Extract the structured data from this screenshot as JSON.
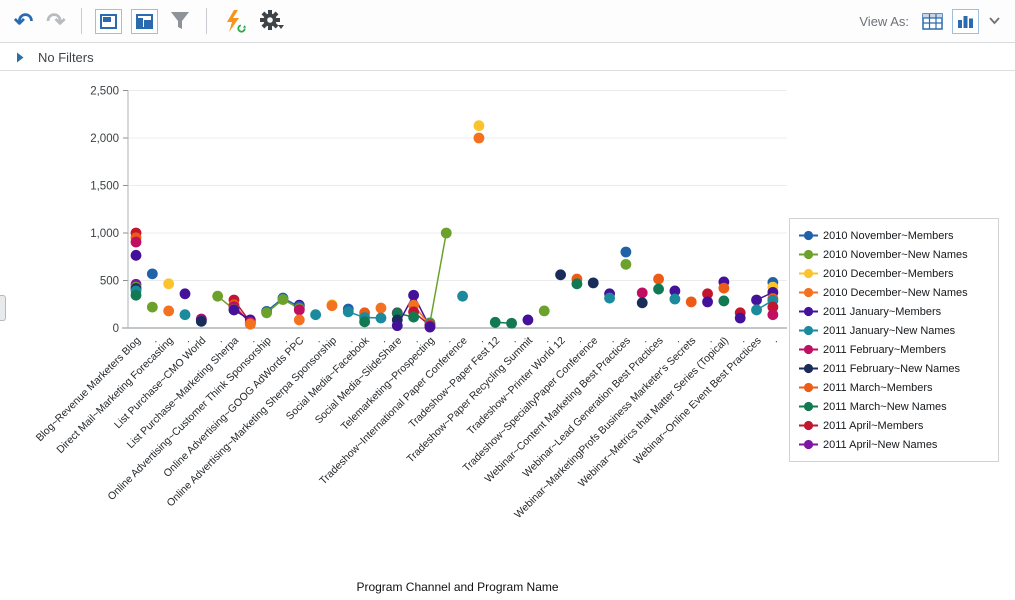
{
  "toolbar": {
    "view_as_label": "View As:"
  },
  "filter_bar": {
    "label": "No Filters"
  },
  "chart_data": {
    "type": "line",
    "title": "",
    "xlabel": "Program Channel and Program Name",
    "ylabel": "",
    "ylim": [
      0,
      2500
    ],
    "grid": true,
    "legend_position": "right",
    "yticks": [
      {
        "v": 0,
        "label": "0"
      },
      {
        "v": 500,
        "label": "500"
      },
      {
        "v": 1000,
        "label": "1,000"
      },
      {
        "v": 1500,
        "label": "1,500"
      },
      {
        "v": 2000,
        "label": "2,000"
      },
      {
        "v": 2500,
        "label": "2,500"
      }
    ],
    "n_columns": 40,
    "labeled_every": 2,
    "unlabeled_tick_text": ".",
    "x_tick_labels": [
      "Blog~Revenue Marketers Blog",
      "Direct Mail~Marketing Forecasting",
      "List Purchase~CMO World",
      "List Purchase~Marketing Sherpa",
      "Online Advertising~Customer Think Sponsorship",
      "Online Advertising~GOOG AdWords PPC",
      "Online Advertising~Marketing Sherpa Sponsorship",
      "Social Media~Facebook",
      "Social Media~SlideShare",
      "Telemarketing~Prospecting",
      "Tradeshow~International Paper Conference",
      "Tradeshow~Paper Fest 12",
      "Tradeshow~Paper Recycling Summit",
      "Tradeshow~Printer World 12",
      "Tradeshow~SpecialtyPaper Conference",
      "Webinar~Content Marketing Best Practices",
      "Webinar~Lead Generation Best Practices",
      "Webinar~MarketingProfs Business Marketer's Secrets",
      "Webinar~Metrics that Matter Series (Topical)",
      "Webinar~Online Event Best Practices"
    ],
    "series": [
      {
        "name": "2010 November~Members",
        "color": "#2062a8"
      },
      {
        "name": "2010 November~New Names",
        "color": "#6ca12c"
      },
      {
        "name": "2010 December~Members",
        "color": "#fdc32e"
      },
      {
        "name": "2010 December~New Names",
        "color": "#f4711f"
      },
      {
        "name": "2011 January~Members",
        "color": "#44129a"
      },
      {
        "name": "2011 January~New Names",
        "color": "#1a8a9c"
      },
      {
        "name": "2011 February~Members",
        "color": "#c00f63"
      },
      {
        "name": "2011 February~New Names",
        "color": "#1a2d5a"
      },
      {
        "name": "2011 March~Members",
        "color": "#ed5c17"
      },
      {
        "name": "2011 March~New Names",
        "color": "#127a52"
      },
      {
        "name": "2011 April~Members",
        "color": "#c3152f"
      },
      {
        "name": "2011 April~New Names",
        "color": "#7d17a3"
      }
    ],
    "points": [
      {
        "c": 0,
        "s": 10,
        "v": 1000
      },
      {
        "c": 0,
        "s": 8,
        "v": 950
      },
      {
        "c": 0,
        "s": 6,
        "v": 905
      },
      {
        "c": 0,
        "s": 4,
        "v": 765
      },
      {
        "c": 0,
        "s": 11,
        "v": 460
      },
      {
        "c": 0,
        "s": 1,
        "v": 430
      },
      {
        "c": 0,
        "s": 7,
        "v": 415
      },
      {
        "c": 0,
        "s": 5,
        "v": 390
      },
      {
        "c": 0,
        "s": 9,
        "v": 345
      },
      {
        "c": 1,
        "s": 0,
        "v": 570
      },
      {
        "c": 1,
        "s": 1,
        "v": 220
      },
      {
        "c": 2,
        "s": 2,
        "v": 465
      },
      {
        "c": 2,
        "s": 3,
        "v": 180
      },
      {
        "c": 3,
        "s": 4,
        "v": 360
      },
      {
        "c": 3,
        "s": 5,
        "v": 140
      },
      {
        "c": 4,
        "s": 6,
        "v": 95
      },
      {
        "c": 4,
        "s": 11,
        "v": 85
      },
      {
        "c": 4,
        "s": 7,
        "v": 70
      },
      {
        "c": 5,
        "s": 1,
        "v": 335
      },
      {
        "c": 6,
        "s": 10,
        "v": 295
      },
      {
        "c": 6,
        "s": 8,
        "v": 245
      },
      {
        "c": 6,
        "s": 6,
        "v": 225
      },
      {
        "c": 6,
        "s": 1,
        "v": 195
      },
      {
        "c": 6,
        "s": 4,
        "v": 190
      },
      {
        "c": 7,
        "s": 4,
        "v": 85
      },
      {
        "c": 7,
        "s": 10,
        "v": 60
      },
      {
        "c": 7,
        "s": 6,
        "v": 55
      },
      {
        "c": 7,
        "s": 8,
        "v": 45
      },
      {
        "c": 7,
        "s": 3,
        "v": 40
      },
      {
        "c": 8,
        "s": 0,
        "v": 175
      },
      {
        "c": 8,
        "s": 1,
        "v": 160
      },
      {
        "c": 9,
        "s": 0,
        "v": 315
      },
      {
        "c": 9,
        "s": 1,
        "v": 300
      },
      {
        "c": 10,
        "s": 4,
        "v": 240
      },
      {
        "c": 10,
        "s": 0,
        "v": 225
      },
      {
        "c": 10,
        "s": 1,
        "v": 205
      },
      {
        "c": 10,
        "s": 6,
        "v": 190
      },
      {
        "c": 10,
        "s": 3,
        "v": 85
      },
      {
        "c": 11,
        "s": 5,
        "v": 140
      },
      {
        "c": 12,
        "s": 2,
        "v": 245
      },
      {
        "c": 12,
        "s": 3,
        "v": 235
      },
      {
        "c": 13,
        "s": 0,
        "v": 200
      },
      {
        "c": 13,
        "s": 5,
        "v": 170
      },
      {
        "c": 14,
        "s": 8,
        "v": 160
      },
      {
        "c": 14,
        "s": 5,
        "v": 110
      },
      {
        "c": 14,
        "s": 9,
        "v": 65
      },
      {
        "c": 15,
        "s": 3,
        "v": 210
      },
      {
        "c": 15,
        "s": 5,
        "v": 105
      },
      {
        "c": 16,
        "s": 6,
        "v": 160
      },
      {
        "c": 16,
        "s": 9,
        "v": 155
      },
      {
        "c": 16,
        "s": 7,
        "v": 85
      },
      {
        "c": 16,
        "s": 4,
        "v": 25
      },
      {
        "c": 17,
        "s": 4,
        "v": 345
      },
      {
        "c": 17,
        "s": 3,
        "v": 240
      },
      {
        "c": 17,
        "s": 10,
        "v": 170
      },
      {
        "c": 17,
        "s": 9,
        "v": 115
      },
      {
        "c": 18,
        "s": 1,
        "v": 55
      },
      {
        "c": 18,
        "s": 5,
        "v": 45
      },
      {
        "c": 18,
        "s": 3,
        "v": 30
      },
      {
        "c": 18,
        "s": 10,
        "v": 25
      },
      {
        "c": 18,
        "s": 6,
        "v": 20
      },
      {
        "c": 18,
        "s": 4,
        "v": 10
      },
      {
        "c": 19,
        "s": 1,
        "v": 1000
      },
      {
        "c": 20,
        "s": 5,
        "v": 335
      },
      {
        "c": 21,
        "s": 2,
        "v": 2130
      },
      {
        "c": 21,
        "s": 3,
        "v": 2000
      },
      {
        "c": 22,
        "s": 9,
        "v": 60
      },
      {
        "c": 23,
        "s": 9,
        "v": 50
      },
      {
        "c": 24,
        "s": 4,
        "v": 85
      },
      {
        "c": 25,
        "s": 1,
        "v": 180
      },
      {
        "c": 26,
        "s": 7,
        "v": 560
      },
      {
        "c": 27,
        "s": 8,
        "v": 515
      },
      {
        "c": 27,
        "s": 9,
        "v": 465
      },
      {
        "c": 28,
        "s": 7,
        "v": 475
      },
      {
        "c": 29,
        "s": 4,
        "v": 360
      },
      {
        "c": 29,
        "s": 5,
        "v": 315
      },
      {
        "c": 30,
        "s": 0,
        "v": 800
      },
      {
        "c": 30,
        "s": 1,
        "v": 670
      },
      {
        "c": 31,
        "s": 6,
        "v": 370
      },
      {
        "c": 31,
        "s": 7,
        "v": 265
      },
      {
        "c": 32,
        "s": 8,
        "v": 515
      },
      {
        "c": 32,
        "s": 9,
        "v": 410
      },
      {
        "c": 33,
        "s": 4,
        "v": 390
      },
      {
        "c": 33,
        "s": 5,
        "v": 305
      },
      {
        "c": 34,
        "s": 8,
        "v": 275
      },
      {
        "c": 35,
        "s": 10,
        "v": 360
      },
      {
        "c": 35,
        "s": 4,
        "v": 275
      },
      {
        "c": 36,
        "s": 4,
        "v": 485
      },
      {
        "c": 36,
        "s": 8,
        "v": 420
      },
      {
        "c": 36,
        "s": 9,
        "v": 285
      },
      {
        "c": 37,
        "s": 10,
        "v": 160
      },
      {
        "c": 37,
        "s": 4,
        "v": 105
      },
      {
        "c": 38,
        "s": 4,
        "v": 295
      },
      {
        "c": 38,
        "s": 5,
        "v": 190
      },
      {
        "c": 39,
        "s": 0,
        "v": 480
      },
      {
        "c": 39,
        "s": 2,
        "v": 430
      },
      {
        "c": 39,
        "s": 4,
        "v": 375
      },
      {
        "c": 39,
        "s": 8,
        "v": 310
      },
      {
        "c": 39,
        "s": 5,
        "v": 290
      },
      {
        "c": 39,
        "s": 10,
        "v": 220
      },
      {
        "c": 39,
        "s": 6,
        "v": 140
      }
    ],
    "segments": [
      {
        "s": 1,
        "c1": 5,
        "c2": 6
      },
      {
        "s": 10,
        "c1": 6,
        "c2": 7
      },
      {
        "s": 8,
        "c1": 6,
        "c2": 7
      },
      {
        "s": 6,
        "c1": 6,
        "c2": 7
      },
      {
        "s": 4,
        "c1": 6,
        "c2": 7
      },
      {
        "s": 0,
        "c1": 8,
        "c2": 9
      },
      {
        "s": 1,
        "c1": 8,
        "c2": 9
      },
      {
        "s": 0,
        "c1": 9,
        "c2": 10
      },
      {
        "s": 1,
        "c1": 9,
        "c2": 10
      },
      {
        "s": 5,
        "c1": 13,
        "c2": 14
      },
      {
        "s": 5,
        "c1": 14,
        "c2": 15
      },
      {
        "s": 3,
        "c1": 14,
        "c2": 15
      },
      {
        "s": 9,
        "c1": 16,
        "c2": 17
      },
      {
        "s": 4,
        "c1": 16,
        "c2": 17
      },
      {
        "s": 4,
        "c1": 17,
        "c2": 18
      },
      {
        "s": 3,
        "c1": 17,
        "c2": 18
      },
      {
        "s": 10,
        "c1": 17,
        "c2": 18
      },
      {
        "s": 9,
        "c1": 17,
        "c2": 18
      },
      {
        "s": 1,
        "c1": 18,
        "c2": 19
      },
      {
        "s": 9,
        "c1": 22,
        "c2": 23
      },
      {
        "s": 4,
        "c1": 38,
        "c2": 39
      },
      {
        "s": 5,
        "c1": 38,
        "c2": 39
      }
    ]
  }
}
